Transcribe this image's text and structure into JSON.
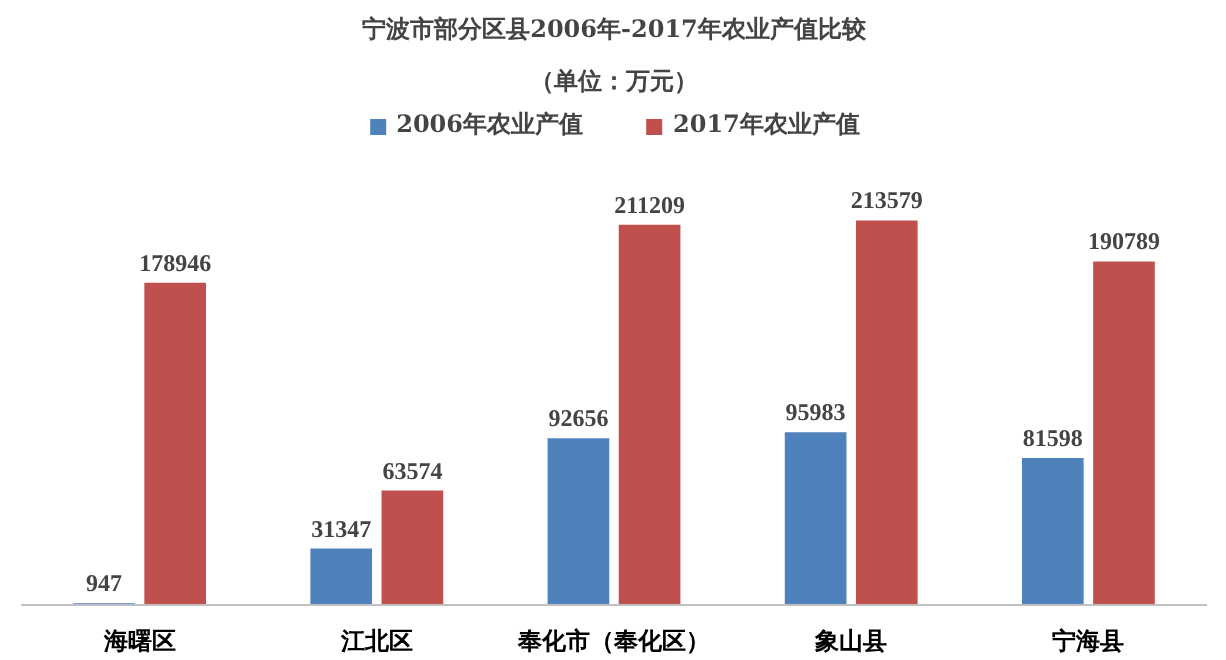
{
  "chart_data": {
    "type": "bar",
    "title": "宁波市部分区县2006年-2017年农业产值比较",
    "subtitle": "（单位：万元）",
    "categories": [
      "海曙区",
      "江北区",
      "奉化市（奉化区）",
      "象山县",
      "宁海县"
    ],
    "series": [
      {
        "name": "2006年农业产值",
        "color": "#4f81bd",
        "values": [
          947,
          31347,
          92656,
          95983,
          81598
        ]
      },
      {
        "name": "2017年农业产值",
        "color": "#c0504d",
        "values": [
          178946,
          63574,
          211209,
          213579,
          190789
        ]
      }
    ],
    "data_labels": true,
    "legend": "top",
    "grid": false
  }
}
